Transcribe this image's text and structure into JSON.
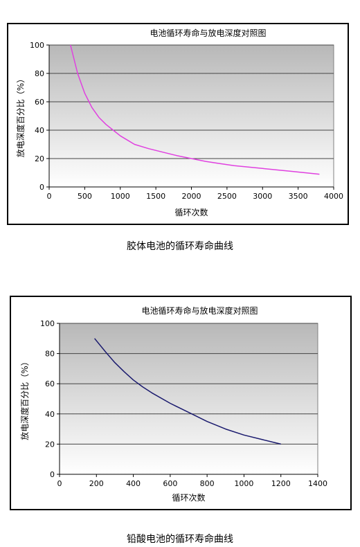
{
  "chart_data": [
    {
      "type": "line",
      "title": "电池循环寿命与放电深度对照图",
      "xlabel": "循环次数",
      "ylabel": "放电深度百分比（%）",
      "xlim": [
        0,
        4000
      ],
      "ylim": [
        0,
        100
      ],
      "xticks": [
        0,
        500,
        1000,
        1500,
        2000,
        2500,
        3000,
        3500,
        4000
      ],
      "yticks": [
        0,
        20,
        40,
        60,
        80,
        100
      ],
      "grid": true,
      "colors": {
        "line": "#e040e0",
        "bg_top": "#b8b8b8",
        "bg_bottom": "#ffffff"
      },
      "series": [
        {
          "x": [
            300,
            400,
            500,
            600,
            700,
            800,
            900,
            1000,
            1100,
            1200,
            1400,
            1600,
            1800,
            2000,
            2200,
            2400,
            2600,
            2800,
            3000,
            3200,
            3400,
            3600,
            3800
          ],
          "y": [
            100,
            80,
            66,
            56,
            49,
            44,
            40,
            36,
            33,
            30,
            27,
            24.5,
            22,
            20,
            18,
            16.5,
            15,
            14,
            13,
            12,
            11,
            10,
            9
          ]
        }
      ]
    },
    {
      "type": "line",
      "title": "电池循环寿命与放电深度对照图",
      "xlabel": "循环次数",
      "ylabel": "放电深度百分比（%）",
      "xlim": [
        0,
        1400
      ],
      "ylim": [
        0,
        100
      ],
      "xticks": [
        0,
        200,
        400,
        600,
        800,
        1000,
        1200,
        1400
      ],
      "yticks": [
        0,
        20,
        40,
        60,
        80,
        100
      ],
      "grid": true,
      "colors": {
        "line": "#1a1a6e",
        "bg_top": "#b8b8b8",
        "bg_bottom": "#ffffff"
      },
      "series": [
        {
          "x": [
            190,
            250,
            300,
            350,
            400,
            450,
            500,
            600,
            700,
            800,
            900,
            1000,
            1100,
            1200
          ],
          "y": [
            90,
            81,
            74,
            68,
            62.5,
            58,
            54,
            47,
            41,
            35,
            30,
            26,
            23,
            20
          ]
        }
      ]
    }
  ],
  "captions": {
    "first": "胶体电池的循环寿命曲线",
    "second": "铅酸电池的循环寿命曲线"
  }
}
